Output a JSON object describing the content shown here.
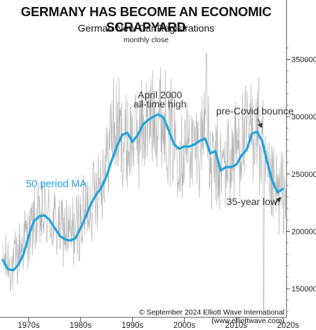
{
  "chart_data": {
    "type": "line",
    "title": "GERMANY HAS BECOME AN ECONOMIC SCRAPYARD",
    "subtitle": "German New Car Registrations",
    "note": "monthly close",
    "copyright": "© September 2024 Elliott Wave International (www.elliottwave.com)",
    "x_tick_labels": [
      "1970s",
      "1980s",
      "1990s",
      "2000s",
      "2010s",
      "2020s"
    ],
    "x_range": [
      1970,
      2024.7
    ],
    "y_ticks": [
      150000,
      200000,
      250000,
      300000,
      350000
    ],
    "y_tick_labels": [
      "150000",
      "200000",
      "250000",
      "300000",
      "350000"
    ],
    "ylim": [
      125000,
      365000
    ],
    "y_axis_side": "right",
    "grid": false,
    "series": [
      {
        "name": "",
        "style": "monthly",
        "color": "#b4b4b4",
        "x": [
          1970,
          1972,
          1975,
          1978,
          1980,
          1983,
          1986,
          1988,
          1990,
          1991,
          1992,
          1994,
          1996,
          1998,
          2000,
          2002,
          2004,
          2006,
          2008,
          2009,
          2010,
          2012,
          2014,
          2016,
          2018,
          2019,
          2020,
          2021,
          2022,
          2023,
          2024.6
        ],
        "y": [
          175000,
          170000,
          200000,
          215000,
          205000,
          195000,
          215000,
          240000,
          260000,
          290000,
          285000,
          275000,
          285000,
          295000,
          300000,
          285000,
          275000,
          275000,
          270000,
          300000,
          255000,
          255000,
          265000,
          280000,
          285000,
          290000,
          265000,
          235000,
          235000,
          230000,
          235000
        ],
        "spread": [
          30000,
          30000,
          33000,
          36000,
          36000,
          38000,
          40000,
          42000,
          45000,
          55000,
          55000,
          52000,
          52000,
          52000,
          55000,
          52000,
          50000,
          50000,
          50000,
          52000,
          48000,
          48000,
          50000,
          50000,
          52000,
          52000,
          70000,
          50000,
          45000,
          45000,
          45000
        ]
      },
      {
        "name": "50 period MA",
        "style": "ma",
        "color": "#1fa3dc",
        "x": [
          1970,
          1971,
          1972,
          1973,
          1974,
          1975,
          1976,
          1977,
          1978,
          1979,
          1980,
          1981,
          1982,
          1983,
          1984,
          1985,
          1986,
          1987,
          1988,
          1989,
          1990,
          1991,
          1992,
          1993,
          1994,
          1995,
          1996,
          1997,
          1998,
          1999,
          2000,
          2001,
          2002,
          2003,
          2004,
          2005,
          2006,
          2007,
          2008,
          2009,
          2010,
          2011,
          2012,
          2013,
          2014,
          2015,
          2016,
          2017,
          2018,
          2019,
          2020,
          2021,
          2022,
          2023,
          2024
        ],
        "y": [
          175000,
          167000,
          166000,
          171000,
          180000,
          196000,
          209000,
          213000,
          214000,
          210000,
          203000,
          196000,
          193000,
          192000,
          194000,
          203000,
          213000,
          224000,
          232000,
          238000,
          248000,
          262000,
          274000,
          284000,
          286000,
          278000,
          284000,
          293000,
          297000,
          300000,
          302000,
          299000,
          288000,
          276000,
          272000,
          274000,
          274000,
          276000,
          279000,
          281000,
          268000,
          270000,
          253000,
          256000,
          256000,
          258000,
          266000,
          271000,
          285000,
          287000,
          279000,
          260000,
          243000,
          234000,
          237000
        ]
      }
    ],
    "annotations": [
      {
        "text": "April 2000",
        "x": 2000.3,
        "y": 316000
      },
      {
        "text": "all-time high",
        "x": 2000.3,
        "y": 308000
      },
      {
        "text": "pre-Covid bounce",
        "x": 2018.6,
        "y": 302000
      },
      {
        "text": "50 period MA",
        "x": 1980.3,
        "y": 238500
      },
      {
        "text": "35-year low!",
        "x": 2018.3,
        "y": 223000
      }
    ]
  }
}
